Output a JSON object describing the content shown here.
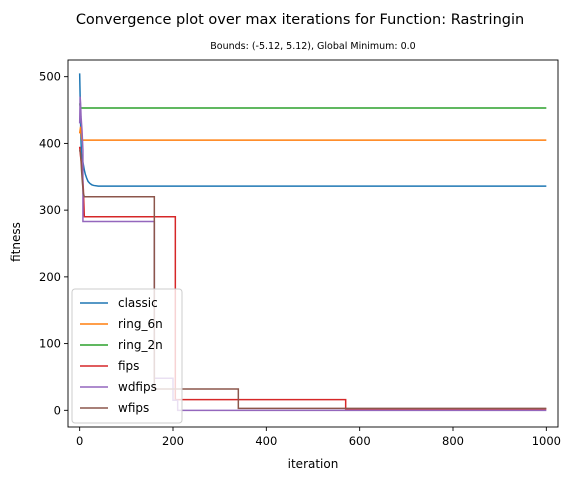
{
  "chart_data": {
    "type": "line",
    "title": "Convergence plot over max iterations for Function: Rastringin",
    "subtitle": "Bounds: (-5.12, 5.12), Global Minimum: 0.0",
    "xlabel": "iteration",
    "ylabel": "fitness",
    "xlim": [
      -25,
      1025
    ],
    "ylim": [
      -25,
      525
    ],
    "xticks": [
      0,
      200,
      400,
      600,
      800,
      1000
    ],
    "yticks": [
      0,
      100,
      200,
      300,
      400,
      500
    ],
    "grid": false,
    "legend_position": "lower-left",
    "series": [
      {
        "name": "classic",
        "color": "#1f77b4",
        "x": [
          0,
          1,
          2,
          3,
          4,
          6,
          8,
          10,
          12,
          15,
          18,
          22,
          26,
          30,
          40,
          60,
          100,
          200,
          400,
          600,
          800,
          1000
        ],
        "y": [
          505,
          470,
          430,
          400,
          385,
          375,
          368,
          360,
          354,
          348,
          343,
          340,
          338,
          337,
          336,
          336,
          336,
          336,
          336,
          336,
          336,
          336
        ]
      },
      {
        "name": "ring_6n",
        "color": "#ff7f0e",
        "x": [
          0,
          1,
          2,
          3,
          4,
          5,
          6,
          1000
        ],
        "y": [
          415,
          420,
          425,
          418,
          410,
          405,
          405,
          405
        ]
      },
      {
        "name": "ring_2n",
        "color": "#2ca02c",
        "x": [
          0,
          1,
          2,
          3,
          4,
          6,
          1000
        ],
        "y": [
          460,
          456,
          454,
          453,
          453,
          453,
          453
        ]
      },
      {
        "name": "fips",
        "color": "#d62728",
        "x": [
          0,
          2,
          4,
          6,
          8,
          10,
          10,
          205,
          205,
          570,
          570,
          1000
        ],
        "y": [
          395,
          380,
          370,
          355,
          330,
          290,
          290,
          290,
          16,
          16,
          2,
          2
        ]
      },
      {
        "name": "wdfips",
        "color": "#9467bd",
        "x": [
          0,
          1,
          2,
          3,
          5,
          7,
          7,
          160,
          160,
          200,
          200,
          210,
          210,
          1000
        ],
        "y": [
          430,
          470,
          460,
          440,
          420,
          390,
          283,
          283,
          48,
          48,
          15,
          15,
          0,
          0
        ]
      },
      {
        "name": "wfips",
        "color": "#8c564b",
        "x": [
          0,
          2,
          4,
          6,
          8,
          10,
          160,
          160,
          340,
          340,
          1000
        ],
        "y": [
          390,
          385,
          360,
          340,
          325,
          320,
          320,
          32,
          32,
          3,
          3
        ]
      }
    ]
  }
}
